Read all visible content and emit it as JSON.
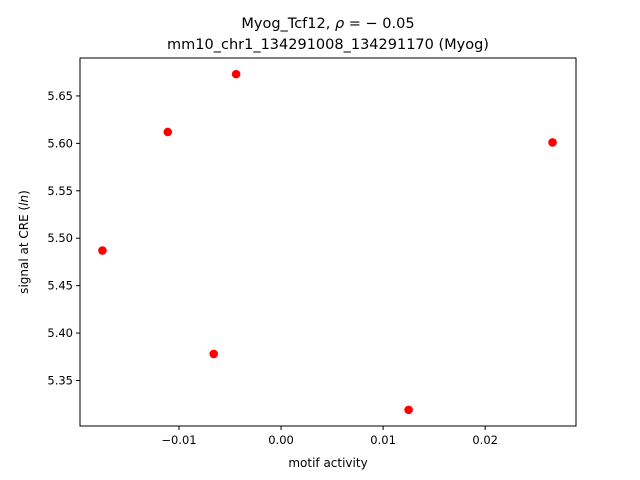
{
  "chart_data": {
    "type": "scatter",
    "title_line1_prefix": "Myog_Tcf12, ",
    "title_line1_rho": "ρ",
    "title_line1_suffix": " = − 0.05",
    "title_line2": "mm10_chr1_134291008_134291170 (Myog)",
    "xlabel": "motif activity",
    "ylabel_prefix": "signal at CRE (",
    "ylabel_italic": "ln",
    "ylabel_suffix": ")",
    "x_ticks": [
      {
        "value": -0.01,
        "label": "−0.01"
      },
      {
        "value": 0.0,
        "label": "0.00"
      },
      {
        "value": 0.01,
        "label": "0.01"
      },
      {
        "value": 0.02,
        "label": "0.02"
      }
    ],
    "y_ticks": [
      {
        "value": 5.35,
        "label": "5.35"
      },
      {
        "value": 5.4,
        "label": "5.40"
      },
      {
        "value": 5.45,
        "label": "5.45"
      },
      {
        "value": 5.5,
        "label": "5.50"
      },
      {
        "value": 5.55,
        "label": "5.55"
      },
      {
        "value": 5.6,
        "label": "5.60"
      },
      {
        "value": 5.65,
        "label": "5.65"
      }
    ],
    "xlim": [
      -0.0197,
      0.0289
    ],
    "ylim": [
      5.302,
      5.69
    ],
    "grid": false,
    "marker_color": "#ff0000",
    "points": [
      {
        "x": -0.0175,
        "y": 5.487
      },
      {
        "x": -0.0111,
        "y": 5.612
      },
      {
        "x": -0.0066,
        "y": 5.378
      },
      {
        "x": -0.0044,
        "y": 5.673
      },
      {
        "x": 0.0125,
        "y": 5.319
      },
      {
        "x": 0.0266,
        "y": 5.601
      }
    ]
  }
}
